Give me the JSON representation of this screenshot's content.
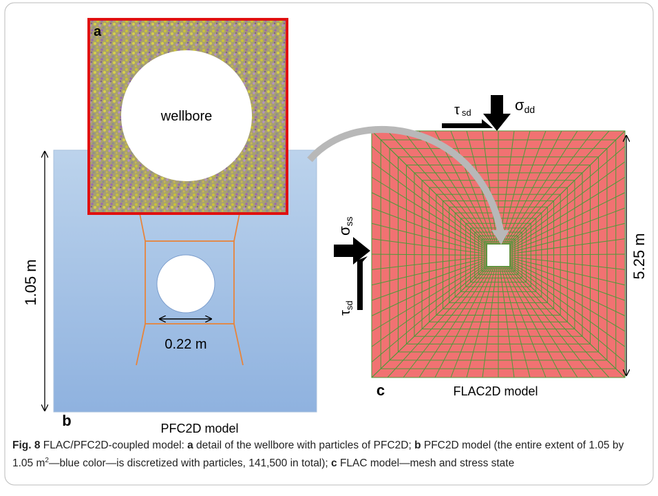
{
  "panel_a": {
    "label": "a",
    "hole_label": "wellbore"
  },
  "panel_b": {
    "label": "b",
    "title": "PFC2D model",
    "height_label": "1.05 m",
    "diameter_label": "0.22 m"
  },
  "panel_c": {
    "label": "c",
    "title": "FLAC2D model",
    "height_label": "5.25 m",
    "stresses": {
      "top_shear": {
        "symbol": "τ",
        "subscript": "sd"
      },
      "top_normal": {
        "symbol": "σ",
        "subscript": "dd"
      },
      "side_normal": {
        "symbol": "σ",
        "subscript": "ss"
      },
      "side_shear": {
        "symbol": "τ",
        "subscript": "sd"
      }
    }
  },
  "caption": {
    "figure": "Fig. 8",
    "parts": [
      {
        "text": " FLAC/PFC2D-coupled model: "
      },
      {
        "text": "a",
        "bold": true
      },
      {
        "text": " detail of the wellbore with particles of PFC2D; "
      },
      {
        "text": "b",
        "bold": true
      },
      {
        "text": " PFC2D model (the entire extent of 1.05 by 1.05 m"
      },
      {
        "text": "2",
        "sup": true
      },
      {
        "text": "—blue color—is discretized with particles, 141,500 in total); "
      },
      {
        "text": "c",
        "bold": true
      },
      {
        "text": " FLAC model—mesh and stress state"
      }
    ]
  }
}
